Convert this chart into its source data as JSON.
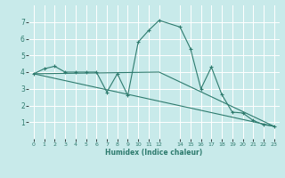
{
  "xlabel": "Humidex (Indice chaleur)",
  "ylabel": "",
  "background_color": "#c8eaea",
  "grid_color": "#ffffff",
  "line_color": "#2e7b6e",
  "xlim": [
    -0.5,
    23.5
  ],
  "ylim": [
    0,
    8
  ],
  "xticks": [
    0,
    1,
    2,
    3,
    4,
    5,
    6,
    7,
    8,
    9,
    10,
    11,
    12,
    14,
    15,
    16,
    17,
    18,
    19,
    20,
    21,
    22,
    23
  ],
  "yticks": [
    1,
    2,
    3,
    4,
    5,
    6,
    7
  ],
  "series1_x": [
    0,
    1,
    2,
    3,
    4,
    5,
    6,
    7,
    8,
    9,
    10,
    11,
    12,
    14,
    15,
    16,
    17,
    18,
    19,
    20,
    21,
    22,
    23
  ],
  "series1_y": [
    3.9,
    4.2,
    4.35,
    4.0,
    4.0,
    4.0,
    4.0,
    2.8,
    3.9,
    2.6,
    5.8,
    6.5,
    7.1,
    6.7,
    5.4,
    3.0,
    4.3,
    2.65,
    1.6,
    1.55,
    1.1,
    0.85,
    0.75
  ],
  "series2_x": [
    0,
    23
  ],
  "series2_y": [
    3.9,
    0.75
  ],
  "series3_x": [
    0,
    12,
    23
  ],
  "series3_y": [
    3.9,
    4.0,
    0.75
  ]
}
